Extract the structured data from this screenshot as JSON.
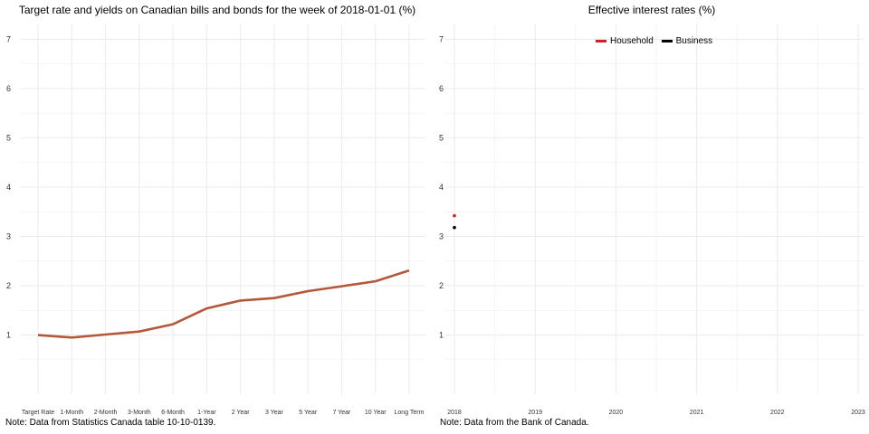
{
  "chart_data": [
    {
      "type": "line",
      "title": "Target rate and yields on Canadian bills and bonds for the week of 2018-01-01 (%)",
      "note": "Note: Data from Statistics Canada table 10-10-0139.",
      "categories": [
        "Target Rate",
        "1-Month",
        "2-Month",
        "3-Month",
        "6-Month",
        "1-Year",
        "2 Year",
        "3 Year",
        "5 Year",
        "7 Year",
        "10 Year",
        "Long Term"
      ],
      "values": [
        1.0,
        0.95,
        1.01,
        1.07,
        1.22,
        1.54,
        1.7,
        1.75,
        1.89,
        1.99,
        2.09,
        2.31
      ],
      "yticks": [
        1,
        2,
        3,
        4,
        5,
        6,
        7
      ],
      "ylim": [
        -0.2,
        7.3
      ],
      "grid": true,
      "line_color": "#b5583a"
    },
    {
      "type": "scatter",
      "title": "Effective interest rates (%)",
      "note": "Note: Data from the Bank of Canada.",
      "xticks": [
        "2018",
        "2019",
        "2020",
        "2021",
        "2022",
        "2023"
      ],
      "xlim": [
        2018,
        2023
      ],
      "yticks": [
        1,
        2,
        3,
        4,
        5,
        6,
        7
      ],
      "ylim": [
        -0.2,
        7.3
      ],
      "grid": true,
      "legend_position": "top",
      "series": [
        {
          "name": "Household",
          "color": "#cc2222",
          "points": [
            {
              "x": 2018.0,
              "y": 3.42
            }
          ]
        },
        {
          "name": "Business",
          "color": "#000000",
          "points": [
            {
              "x": 2018.0,
              "y": 3.18
            }
          ]
        }
      ]
    }
  ]
}
